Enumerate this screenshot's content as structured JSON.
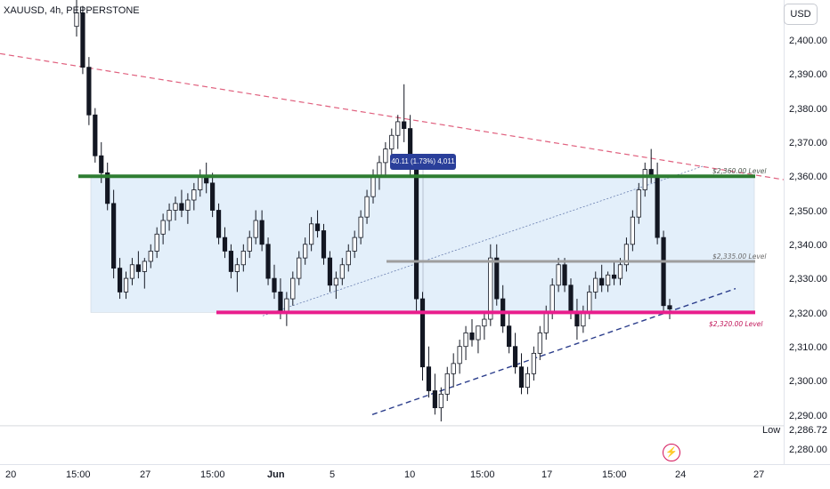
{
  "header": {
    "symbol_line": "XAUUSD, 4h, PEPPERSTONE"
  },
  "currency_label": "USD",
  "measure_label": "40.11 (1.73%) 4,011",
  "low_label": "Low",
  "low_value": "2,286.72",
  "event_icon": "lightning-icon",
  "chart_data": {
    "type": "candlestick",
    "title": "",
    "y_ticks": [
      "2,400.00",
      "2,390.00",
      "2,380.00",
      "2,370.00",
      "2,360.00",
      "2,350.00",
      "2,340.00",
      "2,330.00",
      "2,320.00",
      "2,310.00",
      "2,300.00",
      "2,290.00",
      "2,280.00"
    ],
    "x_ticks": [
      "20",
      "15:00",
      "27",
      "15:00",
      "Jun",
      "5",
      "10",
      "15:00",
      "17",
      "15:00",
      "24",
      "27"
    ],
    "ylim": [
      2277,
      2410
    ],
    "levels": [
      {
        "label": "$2,360.00 Level",
        "value": 2360,
        "color": "#2e7d32"
      },
      {
        "label": "$2,335.00 Level",
        "value": 2335,
        "color": "#9e9e9e"
      },
      {
        "label": "$2,320.00 Level",
        "value": 2320,
        "color": "#e91e8c"
      }
    ],
    "low": 2286.72,
    "candles": [
      [
        2404,
        2412,
        2401,
        2408
      ],
      [
        2408,
        2410,
        2390,
        2392
      ],
      [
        2392,
        2395,
        2375,
        2378
      ],
      [
        2378,
        2380,
        2364,
        2366
      ],
      [
        2366,
        2370,
        2358,
        2361
      ],
      [
        2361,
        2364,
        2350,
        2352
      ],
      [
        2352,
        2356,
        2330,
        2333
      ],
      [
        2333,
        2336,
        2324,
        2326
      ],
      [
        2326,
        2332,
        2324,
        2330
      ],
      [
        2330,
        2336,
        2328,
        2334
      ],
      [
        2334,
        2338,
        2330,
        2332
      ],
      [
        2332,
        2336,
        2327,
        2335
      ],
      [
        2335,
        2340,
        2333,
        2338
      ],
      [
        2338,
        2345,
        2336,
        2343
      ],
      [
        2343,
        2349,
        2340,
        2347
      ],
      [
        2347,
        2352,
        2344,
        2350
      ],
      [
        2350,
        2354,
        2347,
        2352
      ],
      [
        2352,
        2356,
        2348,
        2350
      ],
      [
        2350,
        2355,
        2346,
        2353
      ],
      [
        2353,
        2358,
        2350,
        2356
      ],
      [
        2356,
        2362,
        2354,
        2360
      ],
      [
        2360,
        2364,
        2355,
        2358
      ],
      [
        2358,
        2361,
        2348,
        2350
      ],
      [
        2350,
        2352,
        2340,
        2342
      ],
      [
        2342,
        2345,
        2336,
        2338
      ],
      [
        2338,
        2340,
        2330,
        2332
      ],
      [
        2332,
        2336,
        2326,
        2334
      ],
      [
        2334,
        2340,
        2332,
        2338
      ],
      [
        2338,
        2344,
        2336,
        2342
      ],
      [
        2342,
        2350,
        2340,
        2347
      ],
      [
        2347,
        2350,
        2338,
        2340
      ],
      [
        2340,
        2342,
        2328,
        2330
      ],
      [
        2330,
        2334,
        2324,
        2326
      ],
      [
        2326,
        2330,
        2318,
        2320
      ],
      [
        2320,
        2326,
        2316,
        2324
      ],
      [
        2324,
        2332,
        2322,
        2330
      ],
      [
        2330,
        2338,
        2328,
        2336
      ],
      [
        2336,
        2342,
        2334,
        2340
      ],
      [
        2340,
        2348,
        2338,
        2346
      ],
      [
        2346,
        2350,
        2342,
        2344
      ],
      [
        2344,
        2346,
        2334,
        2336
      ],
      [
        2336,
        2338,
        2326,
        2328
      ],
      [
        2328,
        2332,
        2324,
        2330
      ],
      [
        2330,
        2336,
        2328,
        2334
      ],
      [
        2334,
        2340,
        2332,
        2338
      ],
      [
        2338,
        2344,
        2336,
        2342
      ],
      [
        2342,
        2350,
        2340,
        2348
      ],
      [
        2348,
        2356,
        2346,
        2354
      ],
      [
        2354,
        2362,
        2352,
        2360
      ],
      [
        2360,
        2366,
        2356,
        2364
      ],
      [
        2364,
        2370,
        2360,
        2368
      ],
      [
        2368,
        2374,
        2364,
        2372
      ],
      [
        2372,
        2378,
        2368,
        2376
      ],
      [
        2376,
        2387,
        2370,
        2374
      ],
      [
        2374,
        2378,
        2360,
        2362
      ],
      [
        2362,
        2365,
        2320,
        2324
      ],
      [
        2324,
        2326,
        2300,
        2304
      ],
      [
        2304,
        2310,
        2295,
        2297
      ],
      [
        2297,
        2302,
        2290,
        2292
      ],
      [
        2292,
        2298,
        2288,
        2296
      ],
      [
        2296,
        2304,
        2294,
        2302
      ],
      [
        2302,
        2308,
        2298,
        2305
      ],
      [
        2305,
        2312,
        2302,
        2310
      ],
      [
        2310,
        2316,
        2306,
        2314
      ],
      [
        2314,
        2318,
        2310,
        2312
      ],
      [
        2312,
        2316,
        2308,
        2316
      ],
      [
        2316,
        2320,
        2312,
        2318
      ],
      [
        2318,
        2340,
        2316,
        2336
      ],
      [
        2336,
        2340,
        2322,
        2324
      ],
      [
        2324,
        2328,
        2314,
        2316
      ],
      [
        2316,
        2320,
        2308,
        2310
      ],
      [
        2310,
        2314,
        2302,
        2304
      ],
      [
        2304,
        2308,
        2296,
        2298
      ],
      [
        2298,
        2304,
        2296,
        2302
      ],
      [
        2302,
        2310,
        2300,
        2308
      ],
      [
        2308,
        2316,
        2306,
        2314
      ],
      [
        2314,
        2322,
        2312,
        2320
      ],
      [
        2320,
        2330,
        2318,
        2328
      ],
      [
        2328,
        2336,
        2326,
        2334
      ],
      [
        2334,
        2336,
        2326,
        2328
      ],
      [
        2328,
        2330,
        2318,
        2320
      ],
      [
        2320,
        2324,
        2312,
        2316
      ],
      [
        2316,
        2322,
        2314,
        2320
      ],
      [
        2320,
        2328,
        2318,
        2326
      ],
      [
        2326,
        2332,
        2324,
        2330
      ],
      [
        2330,
        2334,
        2326,
        2328
      ],
      [
        2328,
        2332,
        2326,
        2331
      ],
      [
        2331,
        2335,
        2328,
        2330
      ],
      [
        2330,
        2336,
        2328,
        2334
      ],
      [
        2334,
        2342,
        2332,
        2340
      ],
      [
        2340,
        2350,
        2338,
        2348
      ],
      [
        2348,
        2358,
        2346,
        2356
      ],
      [
        2356,
        2364,
        2354,
        2362
      ],
      [
        2362,
        2368,
        2358,
        2360
      ],
      [
        2360,
        2364,
        2340,
        2342
      ],
      [
        2342,
        2344,
        2320,
        2322
      ],
      [
        2322,
        2324,
        2318,
        2321
      ]
    ]
  }
}
